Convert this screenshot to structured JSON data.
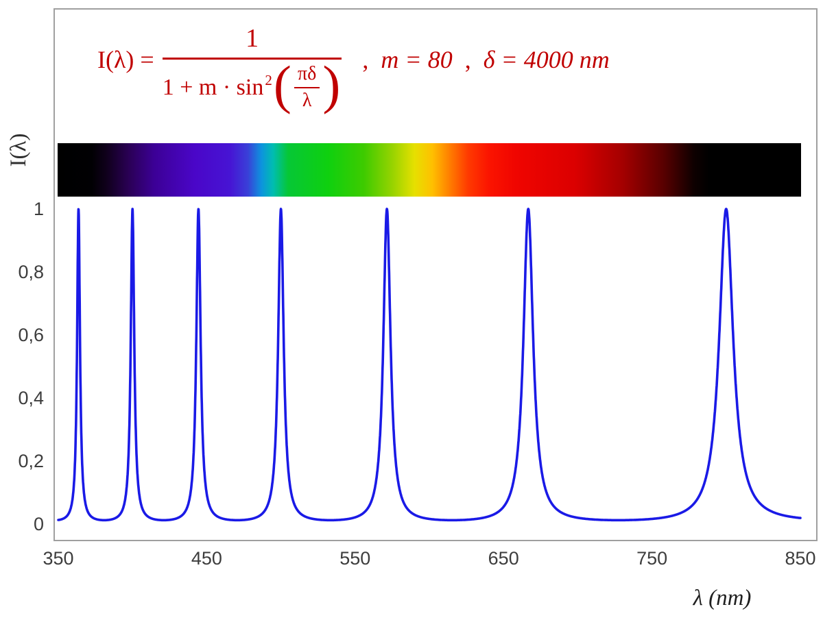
{
  "figure": {
    "y_axis_label": "I(λ)",
    "x_axis_label": "λ  (nm)"
  },
  "formula": {
    "color": "#c00000",
    "lhs": "I(λ) =",
    "numerator": "1",
    "den_prefix": "1 + m · sin",
    "sin_exponent": "2",
    "left_paren": "(",
    "right_paren": ")",
    "inner_numerator": "πδ",
    "inner_denominator": "λ",
    "comma": ",",
    "param_m": "m = 80",
    "param_delta": "δ = 4000 nm"
  },
  "chart_data": {
    "type": "line",
    "title": "I(λ) = 1 / (1 + m·sin²(πδ/λ)) ,  m = 80 ,  δ = 4000 nm",
    "xlabel": "λ (nm)",
    "ylabel": "I(λ)",
    "x_range": [
      350,
      850
    ],
    "y_range": [
      0,
      1
    ],
    "grid": false,
    "legend": false,
    "params": {
      "m": 80,
      "delta_nm": 4000
    },
    "function": "I(lambda) = 1 / (1 + m * sin^2(pi * delta / lambda))",
    "series": [
      {
        "name": "I(λ)",
        "color": "#1a1ae6"
      }
    ],
    "peaks_nm": [
      363.64,
      400,
      444.44,
      500,
      571.43,
      666.67,
      800
    ],
    "x_ticks": [
      {
        "value": 350,
        "label": "350"
      },
      {
        "value": 450,
        "label": "450"
      },
      {
        "value": 550,
        "label": "550"
      },
      {
        "value": 650,
        "label": "650"
      },
      {
        "value": 750,
        "label": "750"
      },
      {
        "value": 850,
        "label": "850"
      }
    ],
    "y_ticks": [
      {
        "value": 0,
        "label": "0"
      },
      {
        "value": 0.2,
        "label": "0,2"
      },
      {
        "value": 0.4,
        "label": "0,4"
      },
      {
        "value": 0.6,
        "label": "0,6"
      },
      {
        "value": 0.8,
        "label": "0,8"
      },
      {
        "value": 1,
        "label": "1"
      }
    ],
    "spectrum_bar": {
      "range_nm": [
        350,
        850
      ],
      "stops": [
        {
          "nm": 350,
          "color": "#000000"
        },
        {
          "nm": 373,
          "color": "#010003"
        },
        {
          "nm": 383,
          "color": "#10001c"
        },
        {
          "nm": 398,
          "color": "#2a0055"
        },
        {
          "nm": 415,
          "color": "#3c0096"
        },
        {
          "nm": 442,
          "color": "#4a06c8"
        },
        {
          "nm": 466,
          "color": "#4714d4"
        },
        {
          "nm": 478,
          "color": "#3940d8"
        },
        {
          "nm": 487,
          "color": "#0d93de"
        },
        {
          "nm": 495,
          "color": "#00bdb0"
        },
        {
          "nm": 505,
          "color": "#06c736"
        },
        {
          "nm": 532,
          "color": "#0fd00f"
        },
        {
          "nm": 556,
          "color": "#3ecb00"
        },
        {
          "nm": 575,
          "color": "#96d300"
        },
        {
          "nm": 590,
          "color": "#e6e000"
        },
        {
          "nm": 602,
          "color": "#ffc000"
        },
        {
          "nm": 614,
          "color": "#ff7c00"
        },
        {
          "nm": 626,
          "color": "#ff3a00"
        },
        {
          "nm": 640,
          "color": "#fb1400"
        },
        {
          "nm": 658,
          "color": "#f00500"
        },
        {
          "nm": 698,
          "color": "#db0000"
        },
        {
          "nm": 730,
          "color": "#a40000"
        },
        {
          "nm": 758,
          "color": "#570000"
        },
        {
          "nm": 778,
          "color": "#0e0000"
        },
        {
          "nm": 788,
          "color": "#000000"
        },
        {
          "nm": 850,
          "color": "#000000"
        }
      ]
    }
  }
}
